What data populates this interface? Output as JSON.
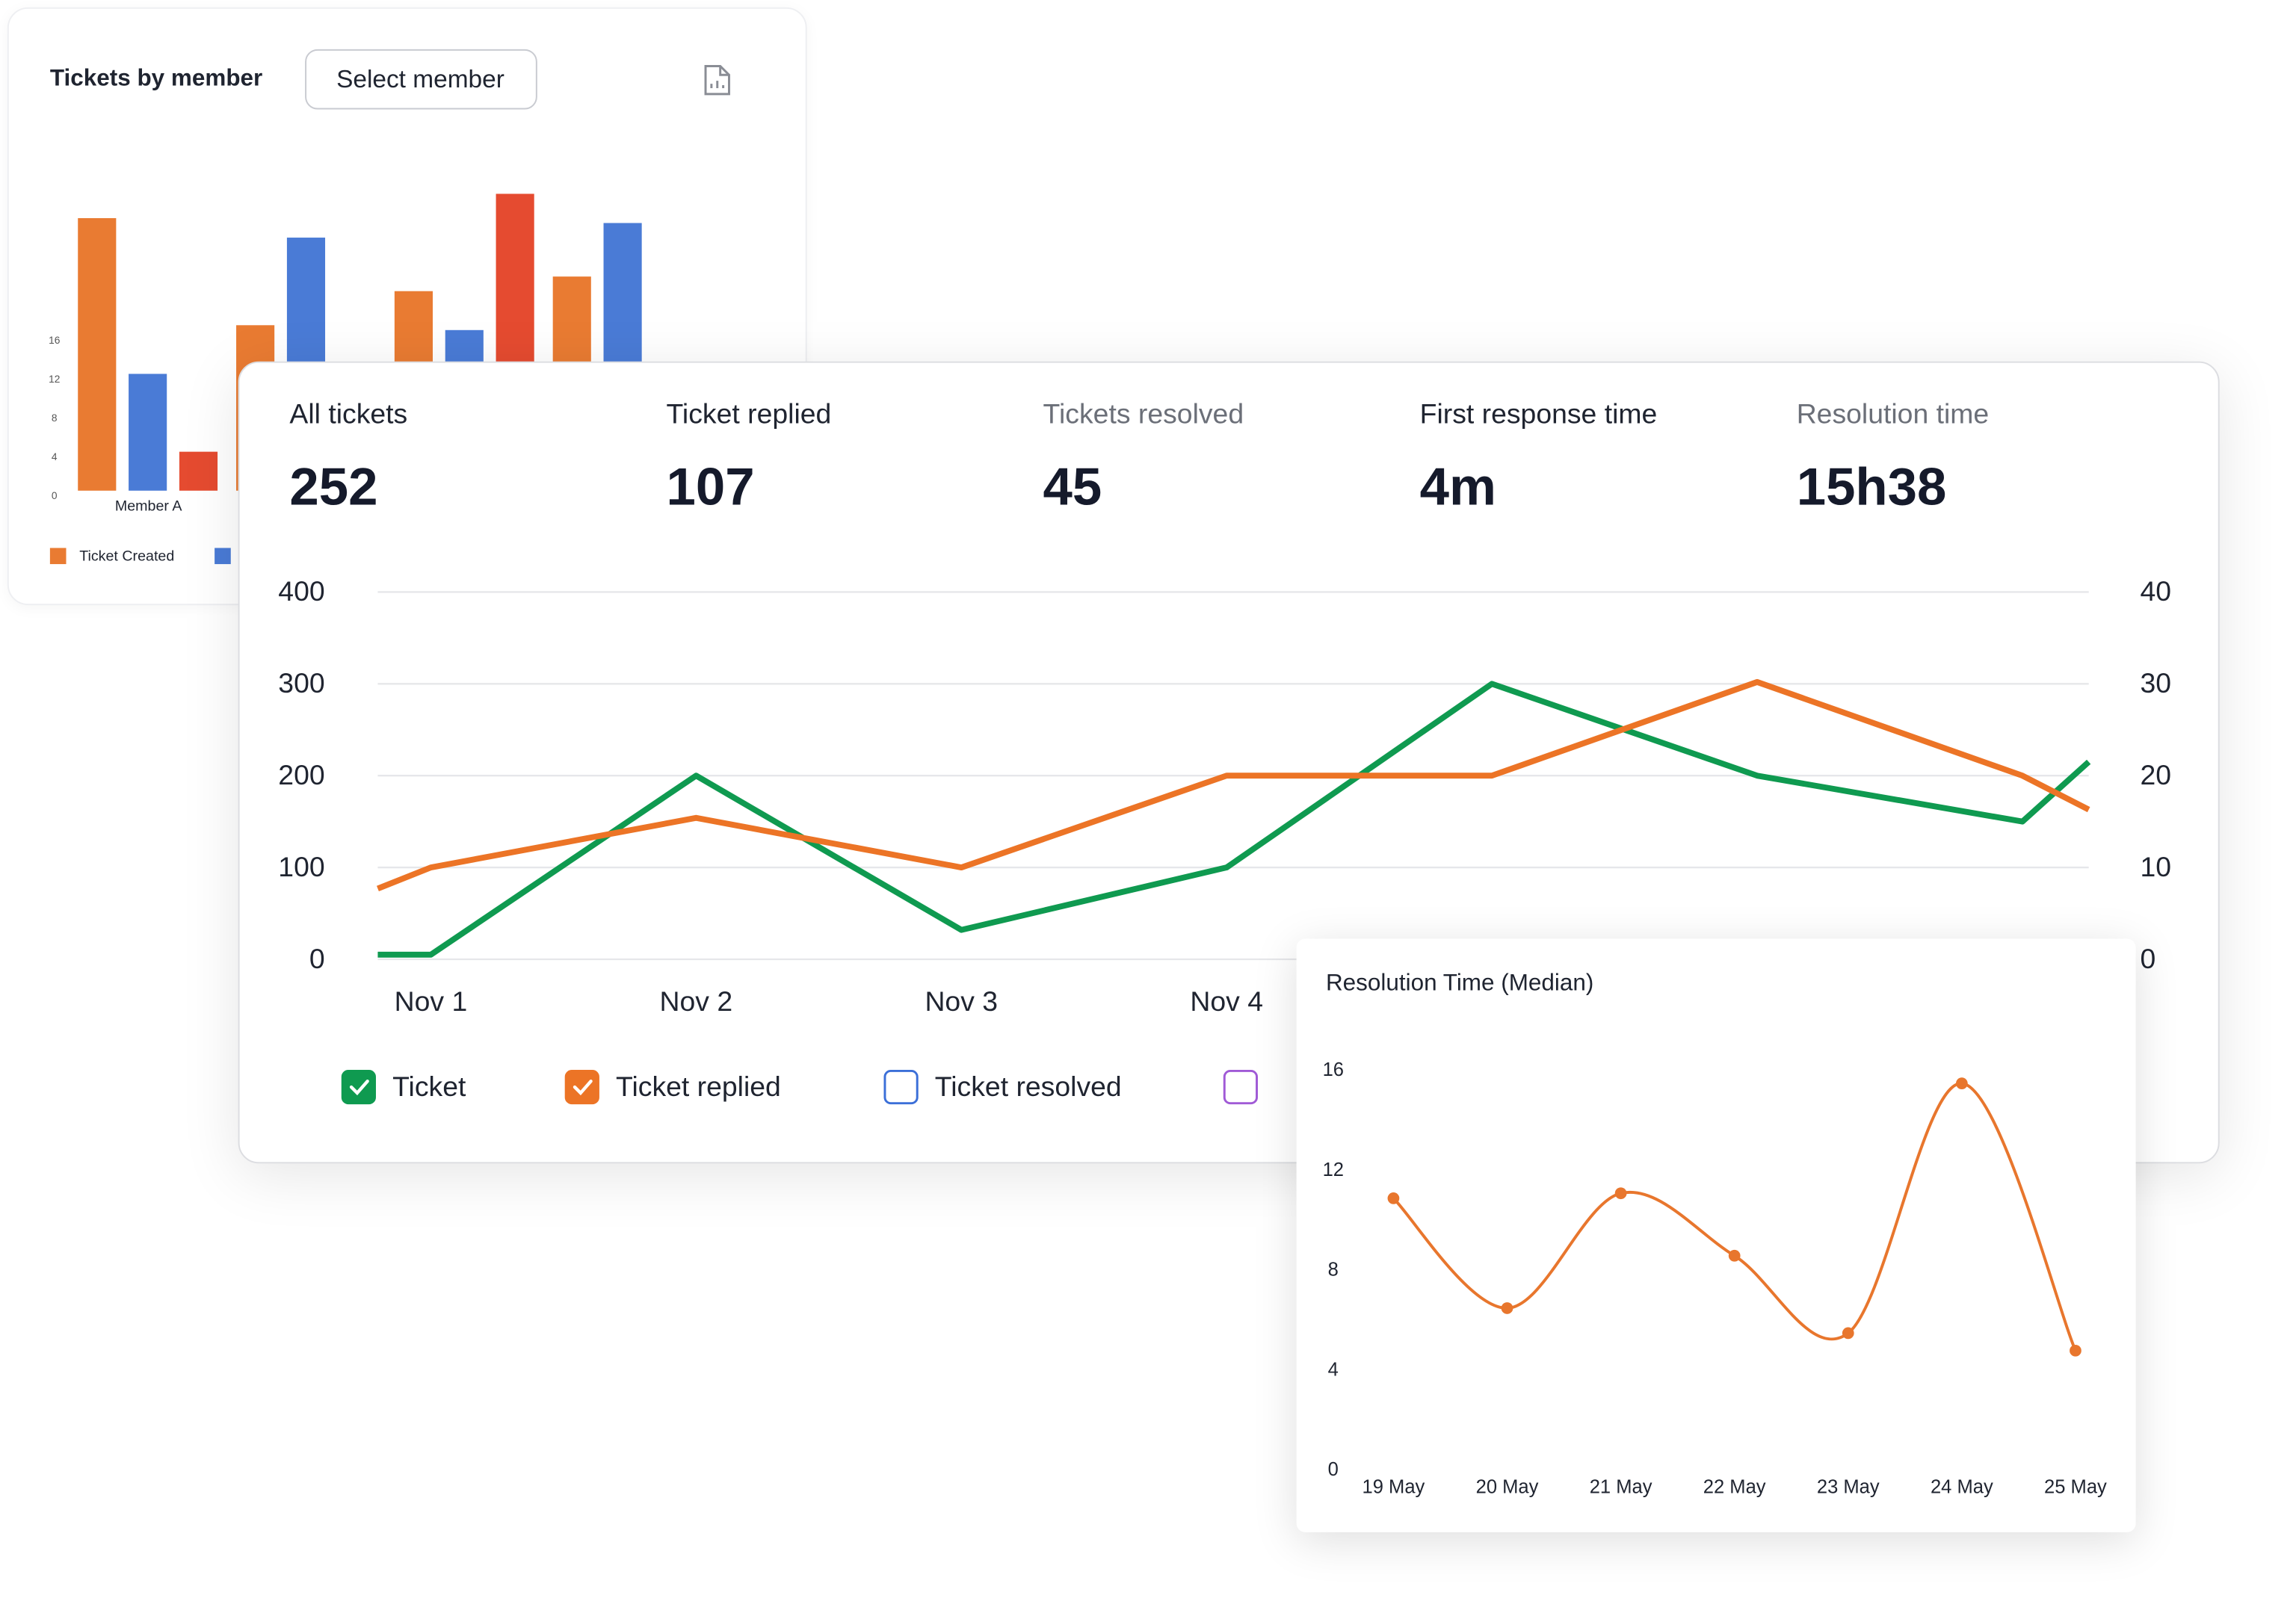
{
  "chart_data": [
    {
      "type": "bar",
      "title": "Tickets by member",
      "button": "Select member",
      "categories": [
        "Member A",
        null,
        null,
        null
      ],
      "series": [
        {
          "name": "Ticket Created",
          "color": "#e97b32",
          "values": [
            28,
            17,
            20.5,
            22
          ]
        },
        {
          "color": "#4a7bd6",
          "values": [
            12,
            26,
            16.5,
            27.5
          ]
        },
        {
          "color": "#e54b30",
          "values": [
            4,
            null,
            30.5,
            null
          ]
        }
      ],
      "ylim": [
        0,
        32
      ],
      "yticks": [
        0,
        4,
        8,
        12,
        16
      ]
    },
    {
      "type": "line",
      "x": [
        0.8,
        1,
        2,
        3,
        4,
        5,
        6,
        7,
        7.25
      ],
      "xlim": [
        0.8,
        7.25
      ],
      "xticks": [
        {
          "value": 1,
          "label": "Nov 1"
        },
        {
          "value": 2,
          "label": "Nov 2"
        },
        {
          "value": 3,
          "label": "Nov 3"
        },
        {
          "value": 4,
          "label": "Nov 4"
        }
      ],
      "ylim": [
        0,
        400
      ],
      "yticks": [
        0,
        100,
        200,
        300,
        400
      ],
      "y2lim": [
        0,
        40
      ],
      "y2ticks": [
        0,
        10,
        20,
        30,
        40
      ],
      "grid": true,
      "series": [
        {
          "name": "Ticket",
          "color": "#0f9a50",
          "checked": true,
          "values": [
            5,
            5,
            200,
            32,
            100,
            300,
            200,
            150,
            215
          ]
        },
        {
          "name": "Ticket replied",
          "color": "#ec7426",
          "checked": true,
          "values": [
            77,
            100,
            154,
            100,
            200,
            200,
            302,
            200,
            163
          ]
        },
        {
          "name": "Ticket resolved",
          "color": "#3b6fd8",
          "checked": false
        },
        {
          "color": "#a05ad6",
          "checked": false
        }
      ]
    },
    {
      "type": "spline",
      "title": "Resolution Time (Median)",
      "categories": [
        "19 May",
        "20 May",
        "21 May",
        "22 May",
        "23 May",
        "24 May",
        "25 May"
      ],
      "values": [
        10.9,
        6.5,
        11.1,
        8.6,
        5.5,
        15.5,
        4.8
      ],
      "color": "#e8762d",
      "ylim": [
        0,
        16
      ],
      "yticks": [
        0,
        4,
        8,
        12,
        16
      ]
    }
  ],
  "stats": [
    {
      "label": "All tickets",
      "value": "252",
      "muted": false
    },
    {
      "label": "Ticket replied",
      "value": "107",
      "muted": false
    },
    {
      "label": "Tickets resolved",
      "value": "45",
      "muted": true
    },
    {
      "label": "First response time",
      "value": "4m",
      "muted": false
    },
    {
      "label": "Resolution time",
      "value": "15h38",
      "muted": true
    }
  ]
}
